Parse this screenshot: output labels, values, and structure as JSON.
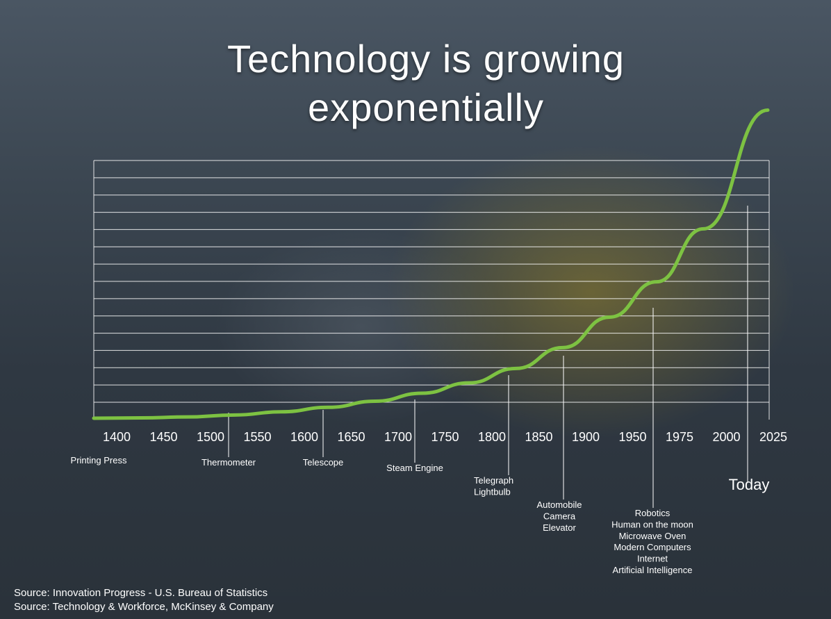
{
  "title_line1": "Technology is growing",
  "title_line2": "exponentially",
  "chart_data": {
    "type": "line",
    "title": "Technology is growing exponentially",
    "grid": true,
    "x_tick_labels": [
      "1400",
      "1450",
      "1500",
      "1550",
      "1600",
      "1650",
      "1700",
      "1750",
      "1800",
      "1850",
      "1900",
      "1950",
      "1975",
      "2000",
      "2025"
    ],
    "series": [
      {
        "points": [
          {
            "x": "1400",
            "y": 0.0
          },
          {
            "x": "1450",
            "y": 0.1
          },
          {
            "x": "1500",
            "y": 0.4
          },
          {
            "x": "1550",
            "y": 1.0
          },
          {
            "x": "1600",
            "y": 2.0
          },
          {
            "x": "1650",
            "y": 3.4
          },
          {
            "x": "1700",
            "y": 5.3
          },
          {
            "x": "1750",
            "y": 7.8
          },
          {
            "x": "1800",
            "y": 11.0
          },
          {
            "x": "1850",
            "y": 15.5
          },
          {
            "x": "1900",
            "y": 22.0
          },
          {
            "x": "1950",
            "y": 31.5
          },
          {
            "x": "1975",
            "y": 42.5
          },
          {
            "x": "2000",
            "y": 59.0
          },
          {
            "x": "2025",
            "y": 96.0
          }
        ]
      }
    ],
    "ylim": [
      0,
      100
    ],
    "annotations": [
      {
        "label_lines": [
          "Printing Press"
        ],
        "year": "1400"
      },
      {
        "label_lines": [
          "Thermometer"
        ],
        "year": "1550"
      },
      {
        "label_lines": [
          "Telescope"
        ],
        "year": "1650"
      },
      {
        "label_lines": [
          "Steam Engine"
        ],
        "year": "1750"
      },
      {
        "label_lines": [
          "Telegraph",
          "Lightbulb"
        ],
        "year": "1850"
      },
      {
        "label_lines": [
          "Automobile",
          "Camera",
          "Elevator"
        ],
        "year": "1900"
      },
      {
        "label_lines": [
          "Robotics",
          "Human on the moon",
          "Microwave Oven",
          "Modern Computers",
          "Internet",
          "Artificial Intelligence"
        ],
        "year": "1975"
      },
      {
        "label_lines": [
          "Today"
        ],
        "year": "2025"
      }
    ]
  },
  "sources": [
    "Source: Innovation Progress - U.S. Bureau of Statistics",
    "Source: Technology & Workforce, McKinsey & Company"
  ],
  "colors": {
    "curve": "#7dc242",
    "grid": "#ffffff",
    "text": "#ffffff"
  }
}
